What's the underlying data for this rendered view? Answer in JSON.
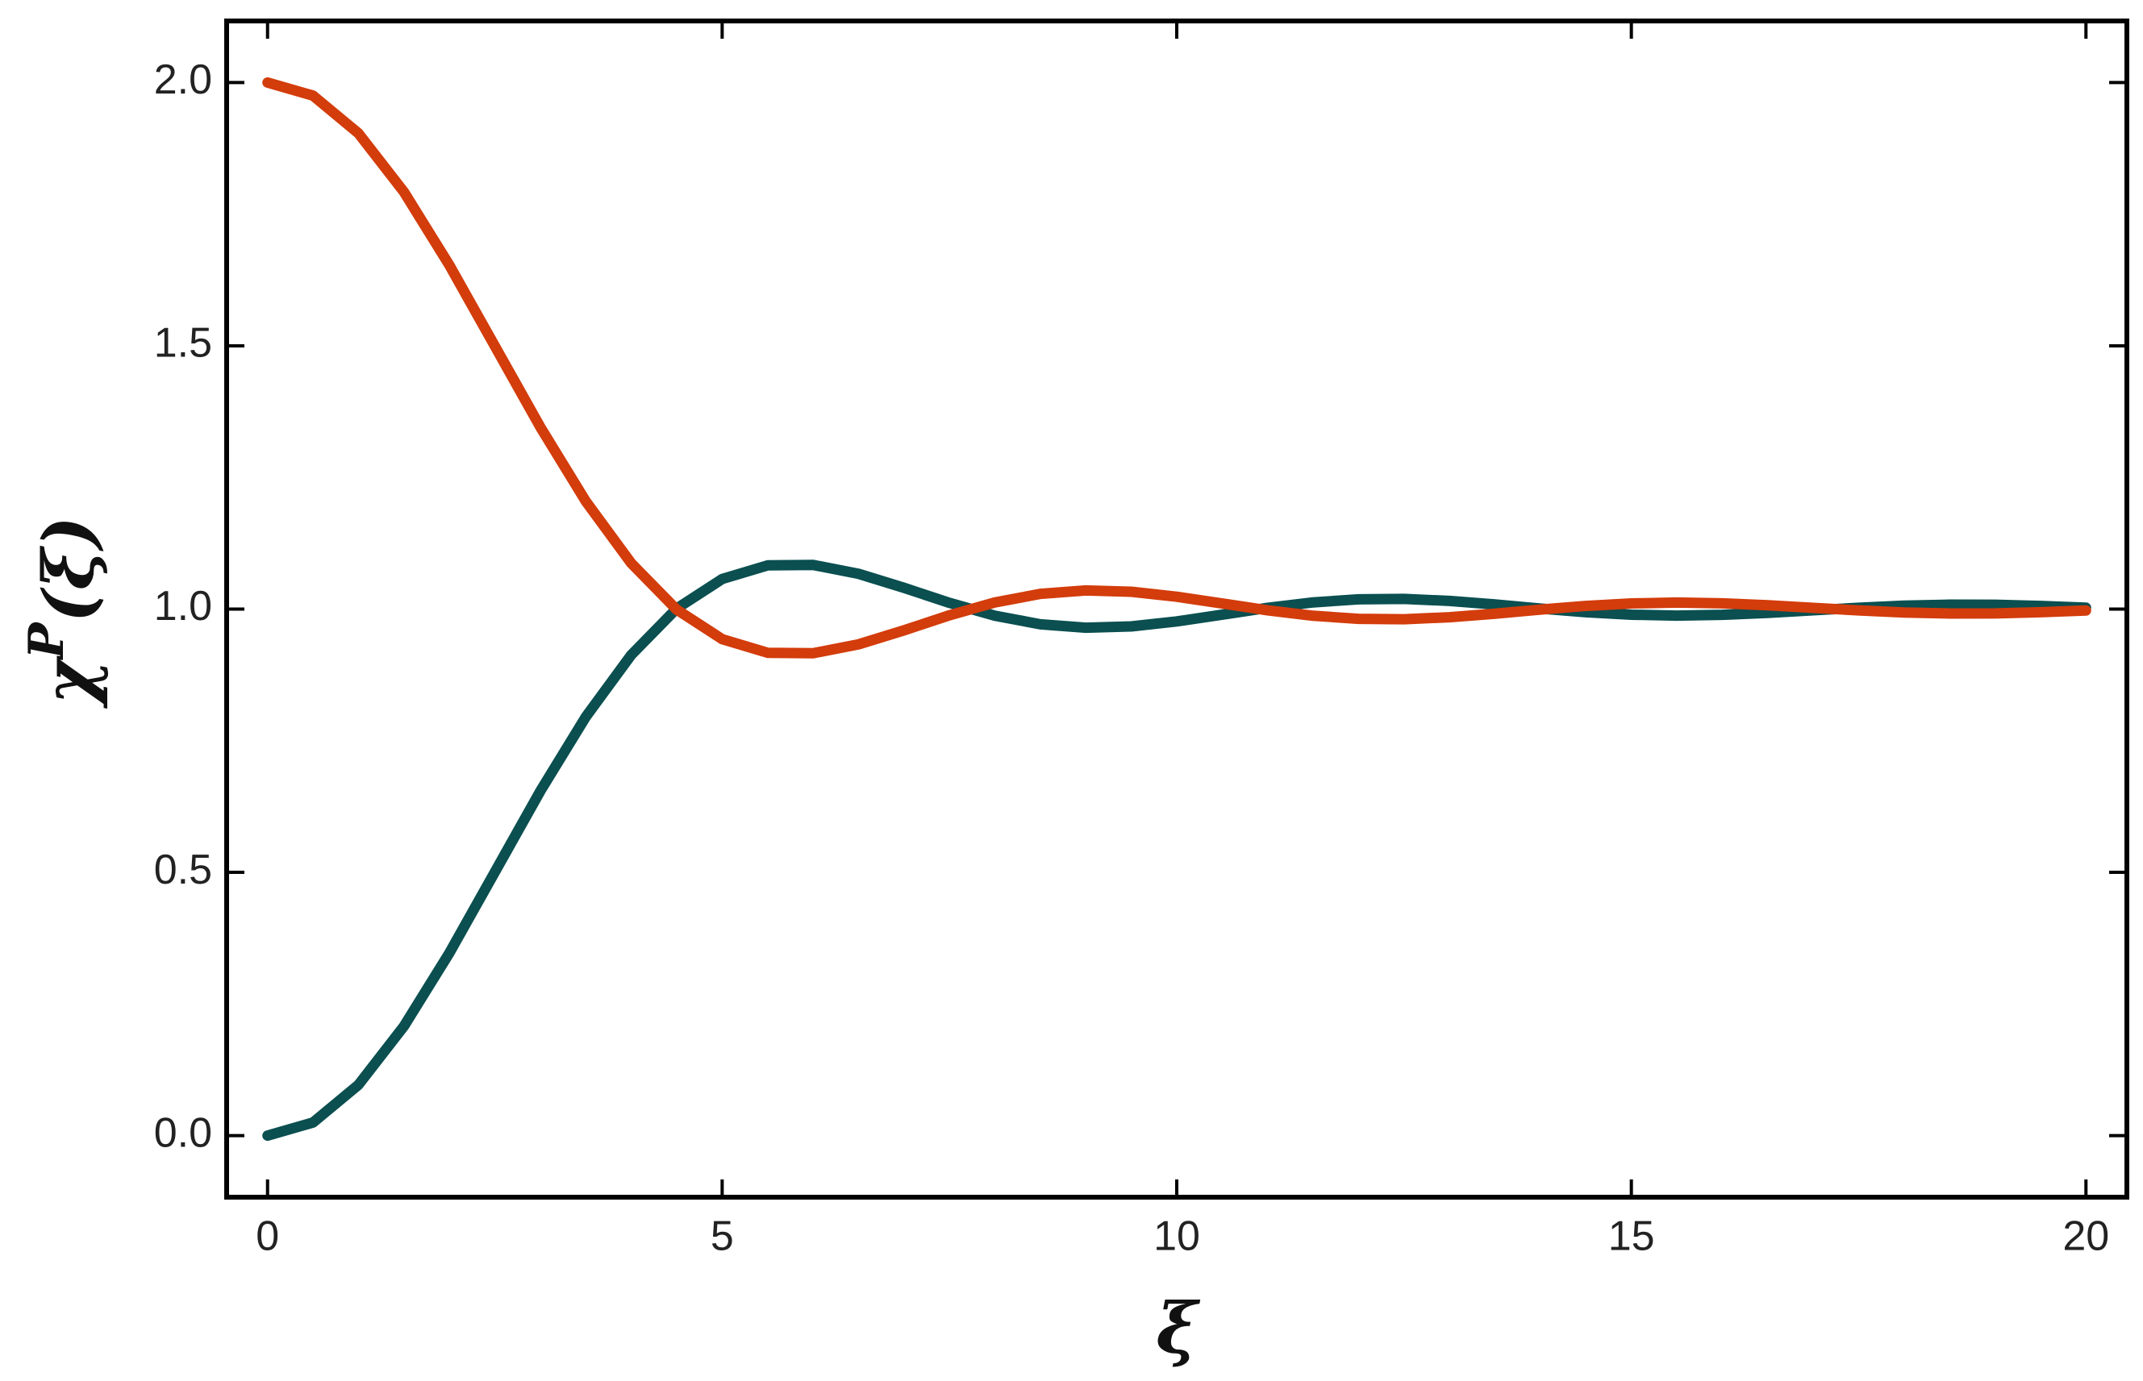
{
  "chart_data": {
    "type": "line",
    "xlabel": "ξ",
    "ylabel": [
      "χ",
      "P",
      "(ξ)"
    ],
    "x": [
      0,
      0.5,
      1,
      1.5,
      2,
      2.5,
      3,
      3.5,
      4,
      4.5,
      5,
      5.5,
      6,
      6.5,
      7,
      7.5,
      8,
      8.5,
      9,
      9.5,
      10,
      10.5,
      11,
      11.5,
      12,
      12.5,
      13,
      13.5,
      14,
      14.5,
      15,
      15.5,
      16,
      16.5,
      17,
      17.5,
      18,
      18.5,
      19,
      19.5,
      20
    ],
    "series": [
      {
        "color": "#0b4f50",
        "values": [
          0,
          0.0248,
          0.0965,
          0.2077,
          0.3469,
          0.5006,
          0.6543,
          0.7952,
          0.9129,
          1.001,
          1.0571,
          1.083,
          1.0839,
          1.067,
          1.0404,
          1.0118,
          0.9874,
          0.9711,
          0.9646,
          0.9671,
          0.9765,
          0.9893,
          1.0024,
          1.0127,
          1.0185,
          1.0193,
          1.0155,
          1.0088,
          1.001,
          0.994,
          0.9893,
          0.9876,
          0.989,
          0.9927,
          0.9977,
          1.0025,
          1.0065,
          1.0084,
          1.0082,
          1.006,
          1.0027
        ]
      },
      {
        "color": "#d33c0b",
        "values": [
          2,
          1.9752,
          1.9035,
          1.7923,
          1.6531,
          1.4994,
          1.3457,
          1.2048,
          1.0871,
          0.999,
          0.9429,
          0.917,
          0.9161,
          0.933,
          0.9596,
          0.9882,
          1.0126,
          1.0289,
          1.0354,
          1.0329,
          1.0235,
          1.0107,
          0.9976,
          0.9873,
          0.9815,
          0.9807,
          0.9845,
          0.9912,
          0.999,
          1.006,
          1.0107,
          1.0124,
          1.011,
          1.0073,
          1.0023,
          0.9975,
          0.9935,
          0.9916,
          0.9918,
          0.994,
          0.9973
        ]
      }
    ],
    "xlim": [
      -0.45,
      20.45
    ],
    "ylim": [
      -0.117,
      2.117
    ],
    "xticks": [
      0,
      5,
      10,
      15,
      20
    ],
    "yticks": [
      {
        "value": 0,
        "label": "0.0"
      },
      {
        "value": 0.5,
        "label": "0.5"
      },
      {
        "value": 1,
        "label": "1.0"
      },
      {
        "value": 1.5,
        "label": "1.5"
      },
      {
        "value": 2,
        "label": "2.0"
      }
    ],
    "grid": false
  }
}
